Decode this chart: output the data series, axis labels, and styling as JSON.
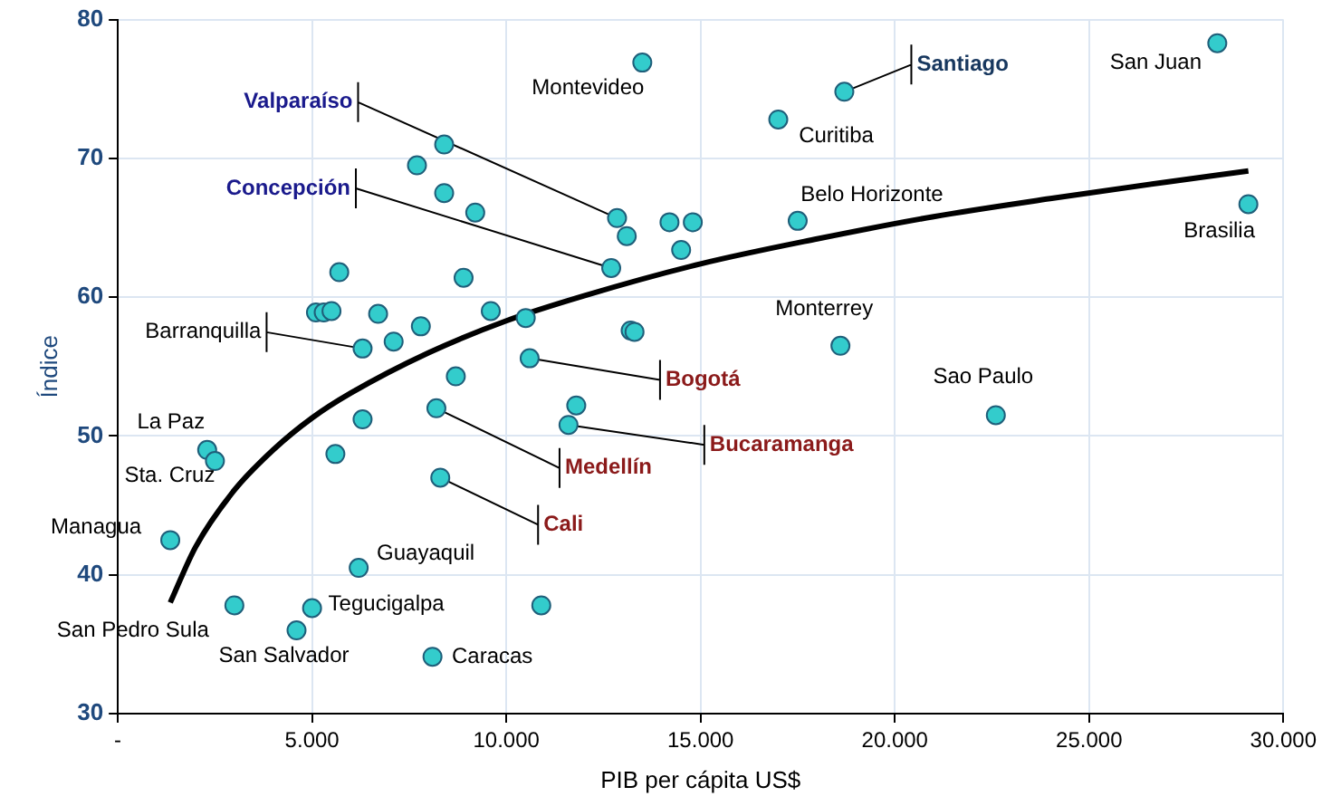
{
  "chart_data": {
    "type": "scatter",
    "xlabel": "PIB per cápita US$",
    "ylabel": "Índice",
    "xlim": [
      0,
      30000
    ],
    "xticks": [
      {
        "value": 0,
        "label": "-"
      },
      {
        "value": 5000,
        "label": "5.000"
      },
      {
        "value": 10000,
        "label": "10.000"
      },
      {
        "value": 15000,
        "label": "15.000"
      },
      {
        "value": 20000,
        "label": "20.000"
      },
      {
        "value": 25000,
        "label": "25.000"
      },
      {
        "value": 30000,
        "label": "30.000"
      }
    ],
    "ylim": [
      30,
      80
    ],
    "yticks": [
      30,
      40,
      50,
      60,
      70,
      80
    ],
    "grid": true,
    "marker": "circle",
    "series": [
      {
        "type": "scatter",
        "color": "#33cccc",
        "x": [
          28300,
          18700,
          17000,
          13500,
          29100,
          17500,
          14200,
          14800,
          14500,
          12850,
          13100,
          12700,
          8400,
          7700,
          8400,
          9200,
          5700,
          8900,
          5100,
          5300,
          5500,
          6700,
          7800,
          9600,
          10500,
          13200,
          13300,
          7100,
          6300,
          18600,
          10600,
          8700,
          11800,
          8200,
          11600,
          22600,
          6300,
          2300,
          2500,
          5600,
          8300,
          1350,
          6200,
          3000,
          5000,
          10900,
          4600,
          8100
        ],
        "values": [
          78.3,
          74.8,
          72.8,
          76.9,
          66.7,
          65.5,
          65.4,
          65.4,
          63.4,
          65.7,
          64.4,
          62.1,
          71.0,
          69.5,
          67.5,
          66.1,
          61.8,
          61.4,
          58.9,
          58.9,
          59.0,
          58.8,
          57.9,
          59.0,
          58.5,
          57.6,
          57.5,
          56.8,
          56.3,
          56.5,
          55.6,
          54.3,
          52.2,
          52.0,
          50.8,
          51.5,
          51.2,
          49.0,
          48.2,
          48.7,
          47.0,
          42.5,
          40.5,
          37.8,
          37.6,
          37.8,
          36.0,
          34.1
        ]
      },
      {
        "type": "line",
        "color": "#000000",
        "marker": "none",
        "x": [
          1350,
          2000,
          3000,
          4000,
          5000,
          6000,
          8000,
          10000,
          12000,
          15000,
          18000,
          21000,
          24000,
          27000,
          29100
        ],
        "values": [
          38.0,
          42.0,
          46.1,
          49.0,
          51.3,
          53.1,
          56.0,
          58.3,
          60.1,
          62.4,
          64.2,
          65.8,
          67.1,
          68.3,
          69.1
        ]
      }
    ],
    "annotations": [
      {
        "text": "San Juan",
        "x": 28300,
        "y": 78.3
      },
      {
        "text": "Santiago",
        "x": 18700,
        "y": 74.8
      },
      {
        "text": "Curitiba",
        "x": 17000,
        "y": 72.8
      },
      {
        "text": "Montevideo",
        "x": 13500,
        "y": 76.9
      },
      {
        "text": "Brasilia",
        "x": 29100,
        "y": 66.7
      },
      {
        "text": "Belo Horizonte",
        "x": 17500,
        "y": 65.5
      },
      {
        "text": "Valparaíso",
        "x": 12850,
        "y": 65.7
      },
      {
        "text": "Concepción",
        "x": 12700,
        "y": 62.1
      },
      {
        "text": "Monterrey",
        "x": 18600,
        "y": 56.5
      },
      {
        "text": "Barranquilla",
        "x": 6300,
        "y": 56.3
      },
      {
        "text": "Bogotá",
        "x": 10600,
        "y": 55.6
      },
      {
        "text": "Sao Paulo",
        "x": 22600,
        "y": 51.5
      },
      {
        "text": "Medellín",
        "x": 8200,
        "y": 52.0
      },
      {
        "text": "Bucaramanga",
        "x": 11600,
        "y": 50.8
      },
      {
        "text": "La Paz",
        "x": 2300,
        "y": 49.0
      },
      {
        "text": "Sta. Cruz",
        "x": 2500,
        "y": 48.2
      },
      {
        "text": "Cali",
        "x": 8300,
        "y": 47.0
      },
      {
        "text": "Managua",
        "x": 1350,
        "y": 42.5
      },
      {
        "text": "Guayaquil",
        "x": 6200,
        "y": 40.5
      },
      {
        "text": "San Pedro Sula",
        "x": 3000,
        "y": 37.8
      },
      {
        "text": "Tegucigalpa",
        "x": 5000,
        "y": 37.6
      },
      {
        "text": "San Salvador",
        "x": 4600,
        "y": 36.0
      },
      {
        "text": "Caracas",
        "x": 8100,
        "y": 34.1
      }
    ]
  }
}
